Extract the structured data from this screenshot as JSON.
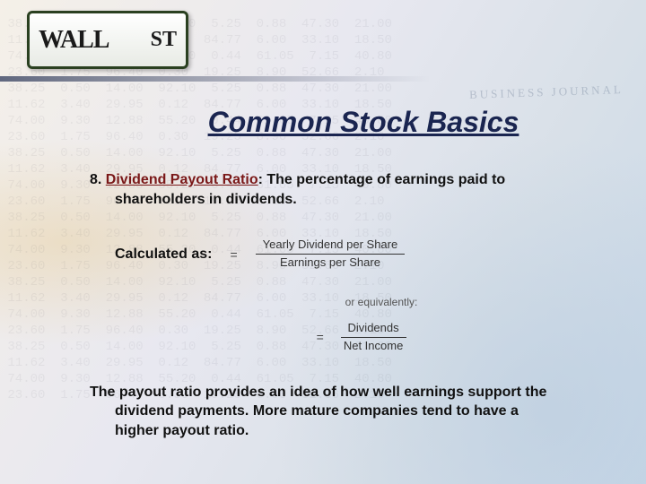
{
  "sign": {
    "main": "WALL",
    "suffix": "ST"
  },
  "journal_watermark": "BUSINESS JOURNAL",
  "title": "Common Stock Basics",
  "definition": {
    "number": "8.",
    "term": "Dividend Payout Ratio",
    "colon": ":",
    "text_line1": " The percentage of earnings paid to",
    "text_line2": "shareholders in dividends."
  },
  "calc_label": "Calculated as:",
  "equals": "=",
  "formula1": {
    "numerator": "Yearly Dividend per Share",
    "denominator": "Earnings per Share"
  },
  "equivalently": "or equivalently:",
  "formula2": {
    "numerator": "Dividends",
    "denominator": "Net Income"
  },
  "closing": {
    "line1": "The payout ratio provides an idea of how well earnings support the",
    "line2": "dividend payments. More mature companies tend to have a",
    "line3": "higher payout ratio."
  },
  "colors": {
    "title": "#1a2550",
    "term": "#7a1818",
    "body": "#111111"
  }
}
